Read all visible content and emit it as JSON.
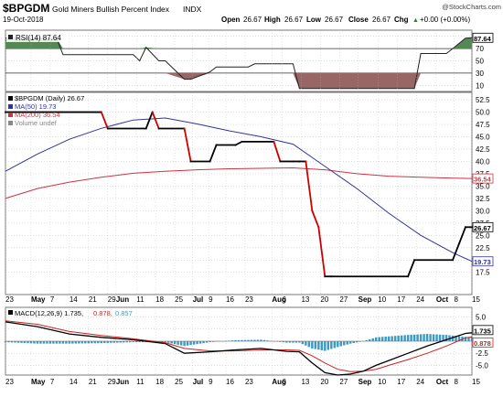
{
  "header": {
    "symbol": "$BPGDM",
    "name": "Gold Miners Bullish Percent Index",
    "exchange": "INDX",
    "date": "19-Oct-2018",
    "watermark": "@StockCharts.com",
    "quote": {
      "open_label": "Open",
      "open": "26.67",
      "high_label": "High",
      "high": "26.67",
      "low_label": "Low",
      "low": "26.67",
      "close_label": "Close",
      "close": "26.67",
      "chg_label": "Chg",
      "chg": "+0.00 (+0.00%)",
      "chg_arrow": "▲"
    }
  },
  "colors": {
    "price": "#000000",
    "price_down": "#cc0000",
    "ma50": "#333399",
    "ma200": "#cc3344",
    "rsi_line": "#222222",
    "rsi_over": "#558855",
    "rsi_under": "#996666",
    "macd_line": "#000000",
    "macd_signal": "#cc2222",
    "histogram": "#3d9ac4",
    "grid": "#bbbbbb",
    "panel_border": "#555555"
  },
  "chart_data": [
    {
      "type": "line",
      "panel": "rsi",
      "legend": "RSI(14) 87.64",
      "ylim": [
        0,
        100
      ],
      "yticks": [
        "90",
        "70",
        "50",
        "30",
        "10"
      ],
      "ref_levels": [
        70,
        30
      ],
      "last_label": "87.64",
      "x": [
        0,
        8,
        9,
        20,
        21,
        22,
        24,
        25,
        28,
        29,
        32,
        33,
        38,
        39,
        45,
        46,
        64,
        65,
        69,
        70,
        72,
        73
      ],
      "values": [
        87,
        87,
        60,
        60,
        50,
        72,
        50,
        50,
        20,
        20,
        32,
        40,
        40,
        45,
        45,
        5,
        5,
        62,
        62,
        70,
        87,
        87.64
      ]
    },
    {
      "type": "line",
      "panel": "price",
      "legend": [
        {
          "name": "$BPGDM (Daily)",
          "value": "26.67"
        },
        {
          "name": "MA(50)",
          "value": "19.73"
        },
        {
          "name": "MA(200)",
          "value": "36.54"
        },
        {
          "name": "Volume",
          "value": "undef"
        }
      ],
      "ylim": [
        13,
        54
      ],
      "yticks": [
        52.5,
        50.0,
        47.5,
        45.0,
        42.5,
        40.0,
        37.5,
        35.0,
        32.5,
        30.0,
        27.5,
        25.0,
        22.5,
        20.0,
        17.5
      ],
      "last_labels": {
        "price": "26.67",
        "ma50": "19.73",
        "ma200": "36.54"
      },
      "series": [
        {
          "name": "$BPGDM (Daily)",
          "x": [
            0,
            15,
            16,
            22,
            23,
            24,
            28,
            29,
            32,
            33,
            36,
            37,
            42,
            43,
            45,
            46,
            47,
            48,
            49,
            50,
            51,
            63,
            64,
            70,
            71,
            72,
            73
          ],
          "values": [
            50,
            50,
            46.67,
            46.67,
            50,
            46.67,
            46.67,
            40,
            40,
            43.33,
            43.33,
            44,
            44,
            40,
            40,
            40,
            40,
            30,
            26.67,
            16.67,
            16.67,
            16.67,
            20,
            20,
            23.33,
            26.67,
            26.67
          ]
        },
        {
          "name": "MA(50)",
          "x": [
            0,
            5,
            10,
            15,
            20,
            25,
            30,
            35,
            40,
            45,
            50,
            55,
            60,
            65,
            70,
            73
          ],
          "values": [
            38,
            41.5,
            44.5,
            46.7,
            48.4,
            48.8,
            47.6,
            46.2,
            45,
            43.5,
            39,
            34.5,
            29.5,
            25,
            21.5,
            19.73
          ]
        },
        {
          "name": "MA(200)",
          "x": [
            0,
            5,
            10,
            15,
            20,
            25,
            30,
            35,
            40,
            45,
            50,
            55,
            60,
            65,
            70,
            73
          ],
          "values": [
            32.5,
            34.5,
            35.8,
            36.8,
            37.6,
            38,
            38.3,
            38.5,
            38.6,
            38.7,
            38.3,
            37.5,
            37,
            36.8,
            36.6,
            36.54
          ]
        }
      ]
    },
    {
      "type": "line",
      "panel": "macd",
      "legend": [
        {
          "name": "MACD(12,26,9)",
          "value": "1.735"
        },
        {
          "name": "",
          "value": "0.878"
        },
        {
          "name": "",
          "value": "0.857"
        }
      ],
      "ylim": [
        -7,
        7
      ],
      "yticks": [
        "5.0",
        "2.5",
        "0.0",
        "-2.5",
        "-5.0"
      ],
      "last_labels": [
        "1.735",
        "0.878"
      ],
      "series": [
        {
          "name": "MACD",
          "x": [
            0,
            5,
            10,
            15,
            20,
            25,
            28,
            32,
            36,
            40,
            44,
            46,
            48,
            50,
            52,
            54,
            56,
            58,
            60,
            63,
            66,
            69,
            72,
            73
          ],
          "values": [
            4,
            3,
            1.5,
            0.8,
            0.3,
            -0.5,
            -2.5,
            -2.2,
            -1.8,
            -1.5,
            -2.1,
            -2.2,
            -4.5,
            -6.5,
            -7,
            -6.8,
            -6.2,
            -5,
            -4,
            -2.5,
            -1,
            0.3,
            1.6,
            1.735
          ]
        },
        {
          "name": "Signal",
          "x": [
            0,
            5,
            10,
            15,
            20,
            25,
            28,
            32,
            36,
            40,
            44,
            46,
            48,
            50,
            52,
            54,
            56,
            58,
            60,
            63,
            66,
            69,
            72,
            73
          ],
          "values": [
            4.2,
            3.5,
            2,
            1.2,
            0.5,
            -0.3,
            -1.5,
            -2,
            -2,
            -1.8,
            -1.8,
            -1.9,
            -3,
            -4.5,
            -5.8,
            -6.3,
            -6.2,
            -5.8,
            -5,
            -3.8,
            -2.5,
            -1,
            0.7,
            0.878
          ]
        }
      ]
    }
  ],
  "x_axis": {
    "labels": [
      {
        "x": 0,
        "text": "23",
        "bold": false
      },
      {
        "x": 4,
        "text": "May",
        "bold": true
      },
      {
        "x": 7,
        "text": "7",
        "bold": false
      },
      {
        "x": 10,
        "text": "14",
        "bold": false
      },
      {
        "x": 13,
        "text": "21",
        "bold": false
      },
      {
        "x": 16,
        "text": "29",
        "bold": false
      },
      {
        "x": 17.3,
        "text": "Jun",
        "bold": true
      },
      {
        "x": 20.5,
        "text": "11",
        "bold": false
      },
      {
        "x": 23.5,
        "text": "18",
        "bold": false
      },
      {
        "x": 26.5,
        "text": "25",
        "bold": false
      },
      {
        "x": 29.3,
        "text": "Jul",
        "bold": true
      },
      {
        "x": 31.8,
        "text": "9",
        "bold": false
      },
      {
        "x": 34.5,
        "text": "16",
        "bold": false
      },
      {
        "x": 37.5,
        "text": "23",
        "bold": false
      },
      {
        "x": 41.7,
        "text": "Aug",
        "bold": true
      },
      {
        "x": 43.3,
        "text": "6",
        "bold": false
      },
      {
        "x": 46.3,
        "text": "13",
        "bold": false
      },
      {
        "x": 49.3,
        "text": "20",
        "bold": false
      },
      {
        "x": 52.3,
        "text": "27",
        "bold": false
      },
      {
        "x": 55.2,
        "text": "Sep",
        "bold": true
      },
      {
        "x": 58.3,
        "text": "10",
        "bold": false
      },
      {
        "x": 61.3,
        "text": "17",
        "bold": false
      },
      {
        "x": 64.3,
        "text": "24",
        "bold": false
      },
      {
        "x": 67.4,
        "text": "Oct",
        "bold": true
      },
      {
        "x": 70.2,
        "text": "8",
        "bold": false
      },
      {
        "x": 73,
        "text": "15",
        "bold": false
      }
    ]
  }
}
